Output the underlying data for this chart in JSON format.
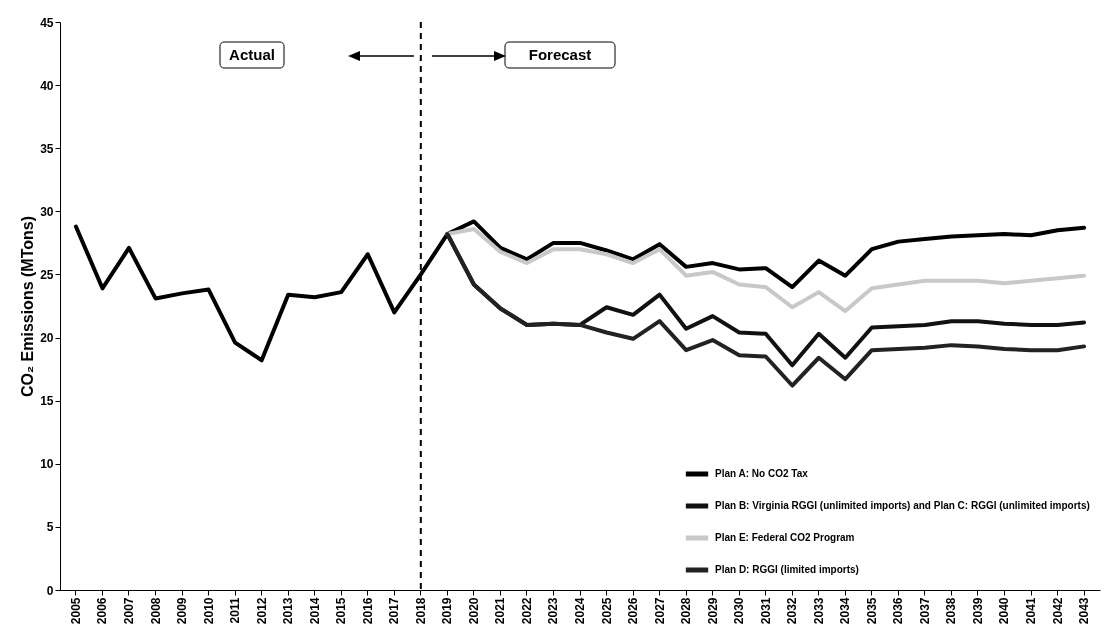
{
  "chart_data": {
    "type": "line",
    "ylabel": "CO₂ Emissions (MTons)",
    "categories": [
      "2005",
      "2006",
      "2007",
      "2008",
      "2009",
      "2010",
      "2011",
      "2012",
      "2013",
      "2014",
      "2015",
      "2016",
      "2017",
      "2018",
      "2019",
      "2020",
      "2021",
      "2022",
      "2023",
      "2024",
      "2025",
      "2026",
      "2027",
      "2028",
      "2029",
      "2030",
      "2031",
      "2032",
      "2033",
      "2034",
      "2035",
      "2036",
      "2037",
      "2038",
      "2039",
      "2040",
      "2041",
      "2042",
      "2043"
    ],
    "series": [
      {
        "color": "#000000",
        "values": [
          28.8,
          23.9,
          27.1,
          23.1,
          23.5,
          23.8,
          19.6,
          18.2,
          23.4,
          23.2,
          23.6,
          26.6,
          22.0,
          25.0,
          28.2,
          null,
          null,
          null,
          null,
          null,
          null,
          null,
          null,
          null,
          null,
          null,
          null,
          null,
          null,
          null,
          null,
          null,
          null,
          null,
          null,
          null,
          null,
          null,
          null
        ]
      },
      {
        "name": "Plan A: No CO2 Tax",
        "color": "#000000",
        "values": [
          null,
          null,
          null,
          null,
          null,
          null,
          null,
          null,
          null,
          null,
          null,
          null,
          null,
          null,
          28.2,
          29.2,
          27.1,
          26.2,
          27.5,
          27.5,
          26.9,
          26.2,
          27.4,
          25.6,
          25.9,
          25.4,
          25.5,
          24.0,
          26.1,
          24.9,
          27.0,
          27.6,
          27.8,
          28.0,
          28.1,
          28.2,
          28.1,
          28.5,
          28.7
        ]
      },
      {
        "name": "Plan B: Virginia RGGI (unlimited imports) and Plan C: RGGI (unlimited imports)",
        "color": "#111111",
        "values": [
          null,
          null,
          null,
          null,
          null,
          null,
          null,
          null,
          null,
          null,
          null,
          null,
          null,
          null,
          28.2,
          24.2,
          22.3,
          21.0,
          21.1,
          21.0,
          22.4,
          21.8,
          23.4,
          20.7,
          21.7,
          20.4,
          20.3,
          17.8,
          20.3,
          18.4,
          20.8,
          20.9,
          21.0,
          21.3,
          21.3,
          21.1,
          21.0,
          21.0,
          21.2
        ]
      },
      {
        "name": "Plan E: Federal CO2 Program",
        "color": "#c8c8c8",
        "values": [
          null,
          null,
          null,
          null,
          null,
          null,
          null,
          null,
          null,
          null,
          null,
          null,
          null,
          null,
          28.2,
          28.6,
          26.8,
          25.9,
          27.0,
          27.0,
          26.6,
          25.9,
          27.0,
          24.9,
          25.2,
          24.2,
          24.0,
          22.4,
          23.6,
          22.1,
          23.9,
          24.2,
          24.5,
          24.5,
          24.5,
          24.3,
          24.5,
          24.7,
          24.9
        ]
      },
      {
        "name": "Plan D: RGGI (limited imports)",
        "color": "#222222",
        "values": [
          null,
          null,
          null,
          null,
          null,
          null,
          null,
          null,
          null,
          null,
          null,
          null,
          null,
          null,
          28.2,
          24.2,
          22.3,
          21.0,
          21.1,
          21.0,
          20.4,
          19.9,
          21.3,
          19.0,
          19.8,
          18.6,
          18.5,
          16.2,
          18.4,
          16.7,
          19.0,
          19.1,
          19.2,
          19.4,
          19.3,
          19.1,
          19.0,
          19.0,
          19.3
        ]
      }
    ],
    "ylim": [
      0,
      45
    ],
    "yticks": [
      0,
      5,
      10,
      15,
      20,
      25,
      30,
      35,
      40,
      45
    ],
    "ref_lines": [
      {
        "axis": "x",
        "value": "2018",
        "line_style": "dashed"
      }
    ],
    "annotations": [
      "Actual",
      "Forecast"
    ],
    "legend": "bottom right",
    "grid": false,
    "line_style": "solid",
    "marker": "none"
  }
}
